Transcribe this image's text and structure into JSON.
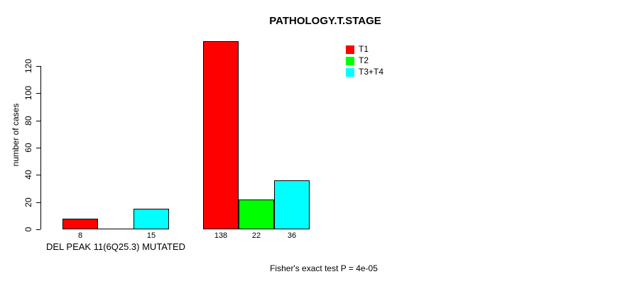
{
  "title": "PATHOLOGY.T.STAGE",
  "y_axis": {
    "label": "number of cases"
  },
  "footer": "Fisher's exact test P = 4e-05",
  "legend": {
    "items": [
      {
        "label": "T1",
        "color": "#FF0000"
      },
      {
        "label": "T2",
        "color": "#00FF00"
      },
      {
        "label": "T3+T4",
        "color": "#00FFFF"
      }
    ]
  },
  "chart_data": {
    "type": "bar",
    "title": "PATHOLOGY.T.STAGE",
    "xlabel": "",
    "ylabel": "number of cases",
    "ylim": [
      0,
      138
    ],
    "yticks": [
      0,
      20,
      40,
      60,
      80,
      100,
      120
    ],
    "grid": false,
    "legend_position": "top-right",
    "categories": [
      "DEL PEAK 11(6Q25.3) MUTATED",
      ""
    ],
    "series": [
      {
        "name": "T1",
        "color": "#FF0000",
        "values": [
          8,
          138
        ]
      },
      {
        "name": "T2",
        "color": "#00FF00",
        "values": [
          0,
          22
        ]
      },
      {
        "name": "T3+T4",
        "color": "#00FFFF",
        "values": [
          15,
          36
        ]
      }
    ],
    "bar_value_labels_visible": [
      "8",
      "15",
      "138",
      "22",
      "36"
    ],
    "annotation": "Fisher's exact test P = 4e-05"
  }
}
